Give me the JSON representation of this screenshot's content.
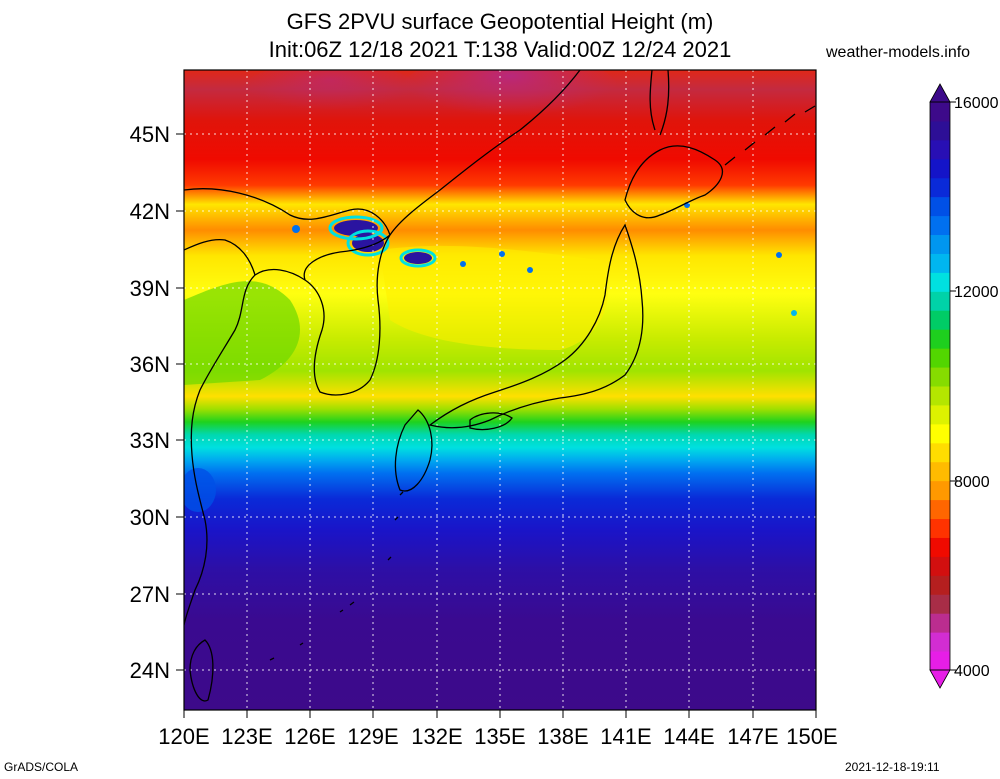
{
  "header": {
    "title_line1": "GFS 2PVU surface Geopotential Height (m)",
    "title_line2": "Init:06Z 12/18 2021 T:138 Valid:00Z 12/24 2021",
    "site": "weather-models.info"
  },
  "map": {
    "lat_labels": [
      "45N",
      "42N",
      "39N",
      "36N",
      "33N",
      "30N",
      "27N",
      "24N"
    ],
    "lon_labels": [
      "120E",
      "123E",
      "126E",
      "129E",
      "132E",
      "135E",
      "138E",
      "141E",
      "144E",
      "147E",
      "150E"
    ],
    "gridlines": "dotted"
  },
  "colorbar": {
    "labels": [
      "16000",
      "12000",
      "8000",
      "4000"
    ],
    "colors": [
      "#e61ee6",
      "#d22dd2",
      "#bb2d8f",
      "#a82d47",
      "#b51f1f",
      "#d20f0f",
      "#f00a00",
      "#ff3300",
      "#ff6600",
      "#ff9900",
      "#ffbb00",
      "#ffdd00",
      "#ffff00",
      "#ddf200",
      "#b4e600",
      "#86dc00",
      "#52d600",
      "#1ecf1e",
      "#00cc66",
      "#00d2a8",
      "#00e0e0",
      "#00b6f0",
      "#0096f0",
      "#0070f0",
      "#0050e6",
      "#0a2ad8",
      "#1414c8",
      "#280fb4",
      "#2d0f96",
      "#3d0a8a"
    ]
  },
  "footer": {
    "left": "GrADS/COLA",
    "right": "2021-12-18-19:11"
  }
}
